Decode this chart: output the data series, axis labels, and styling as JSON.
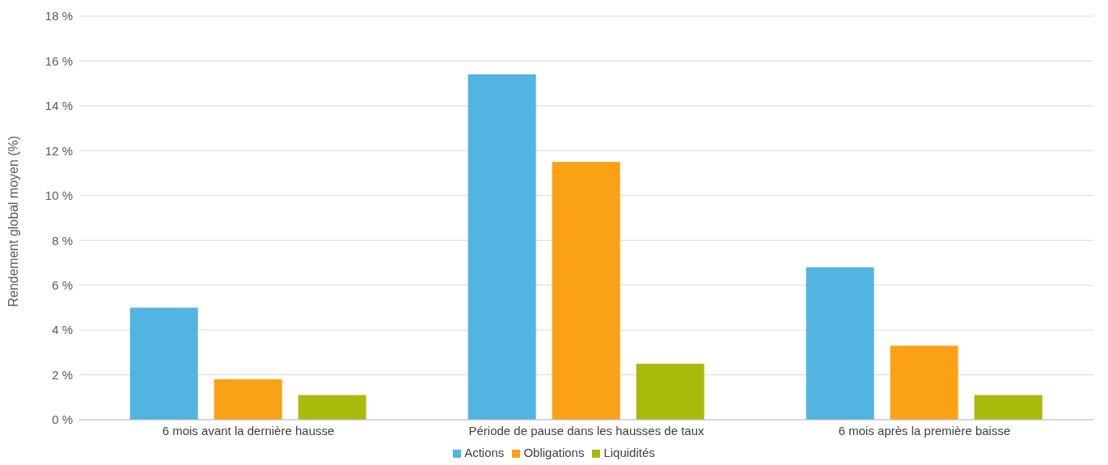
{
  "chart_data": {
    "type": "bar",
    "ylabel": "Rendement global moyen (%)",
    "categories": [
      "6 mois avant la dernière hausse",
      "Période de pause dans les hausses de taux",
      "6 mois après la première baisse"
    ],
    "series": [
      {
        "name": "Actions",
        "color": "#52b4e0",
        "values": [
          5.0,
          15.4,
          6.8
        ]
      },
      {
        "name": "Obligations",
        "color": "#fba115",
        "values": [
          1.8,
          11.5,
          3.3
        ]
      },
      {
        "name": "Liquidités",
        "color": "#a9ba0c",
        "values": [
          1.1,
          2.5,
          1.1
        ]
      }
    ],
    "ylim": [
      0,
      18
    ],
    "yticks": [
      {
        "value": 0,
        "label": "0 %"
      },
      {
        "value": 2,
        "label": "2 %"
      },
      {
        "value": 4,
        "label": "4 %"
      },
      {
        "value": 6,
        "label": "6 %"
      },
      {
        "value": 8,
        "label": "8 %"
      },
      {
        "value": 10,
        "label": "10 %"
      },
      {
        "value": 12,
        "label": "12 %"
      },
      {
        "value": 14,
        "label": "14 %"
      },
      {
        "value": 16,
        "label": "16 %"
      },
      {
        "value": 18,
        "label": "18 %"
      }
    ],
    "grid": "y",
    "legend": "bottom"
  }
}
